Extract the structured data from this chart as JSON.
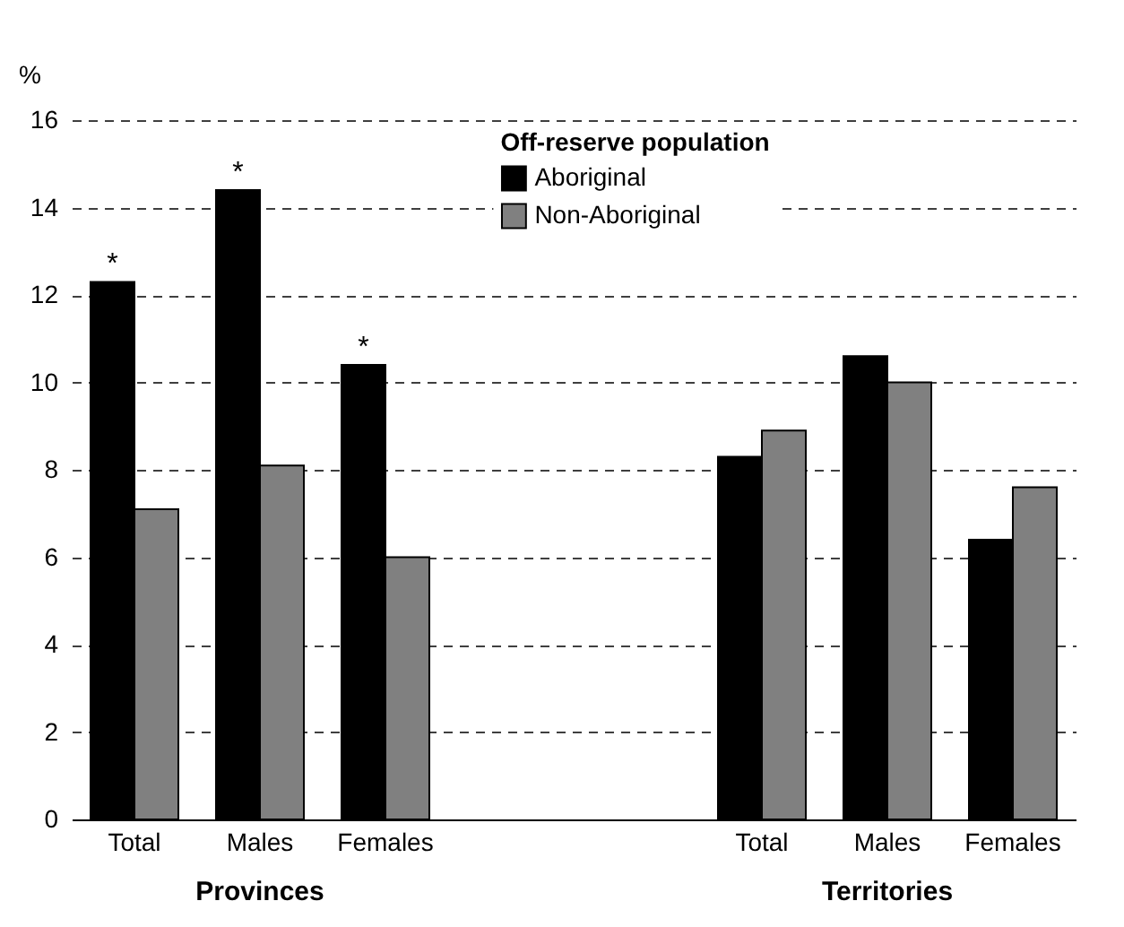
{
  "chart_data": {
    "type": "bar",
    "ylabel": "%",
    "legend_title": "Off-reserve population",
    "categories": [
      "Total",
      "Males",
      "Females",
      null,
      null,
      "Total",
      "Males",
      "Females"
    ],
    "series": [
      {
        "name": "Aboriginal",
        "color": "#000000",
        "values": [
          12.3,
          14.4,
          10.4,
          null,
          null,
          8.3,
          10.6,
          6.4
        ],
        "value_labels": [
          "*",
          "*",
          "*",
          null,
          null,
          null,
          null,
          null
        ]
      },
      {
        "name": "Non-Aboriginal",
        "color": "#808080",
        "values": [
          7.1,
          8.1,
          6.0,
          null,
          null,
          8.9,
          10.0,
          7.6
        ]
      }
    ],
    "annotations": [
      "Provinces",
      "Territories"
    ],
    "ylim": [
      0,
      16
    ],
    "yticks": [
      0,
      2,
      4,
      6,
      8,
      10,
      12,
      14,
      16
    ],
    "grid": "y",
    "legend": "top"
  }
}
